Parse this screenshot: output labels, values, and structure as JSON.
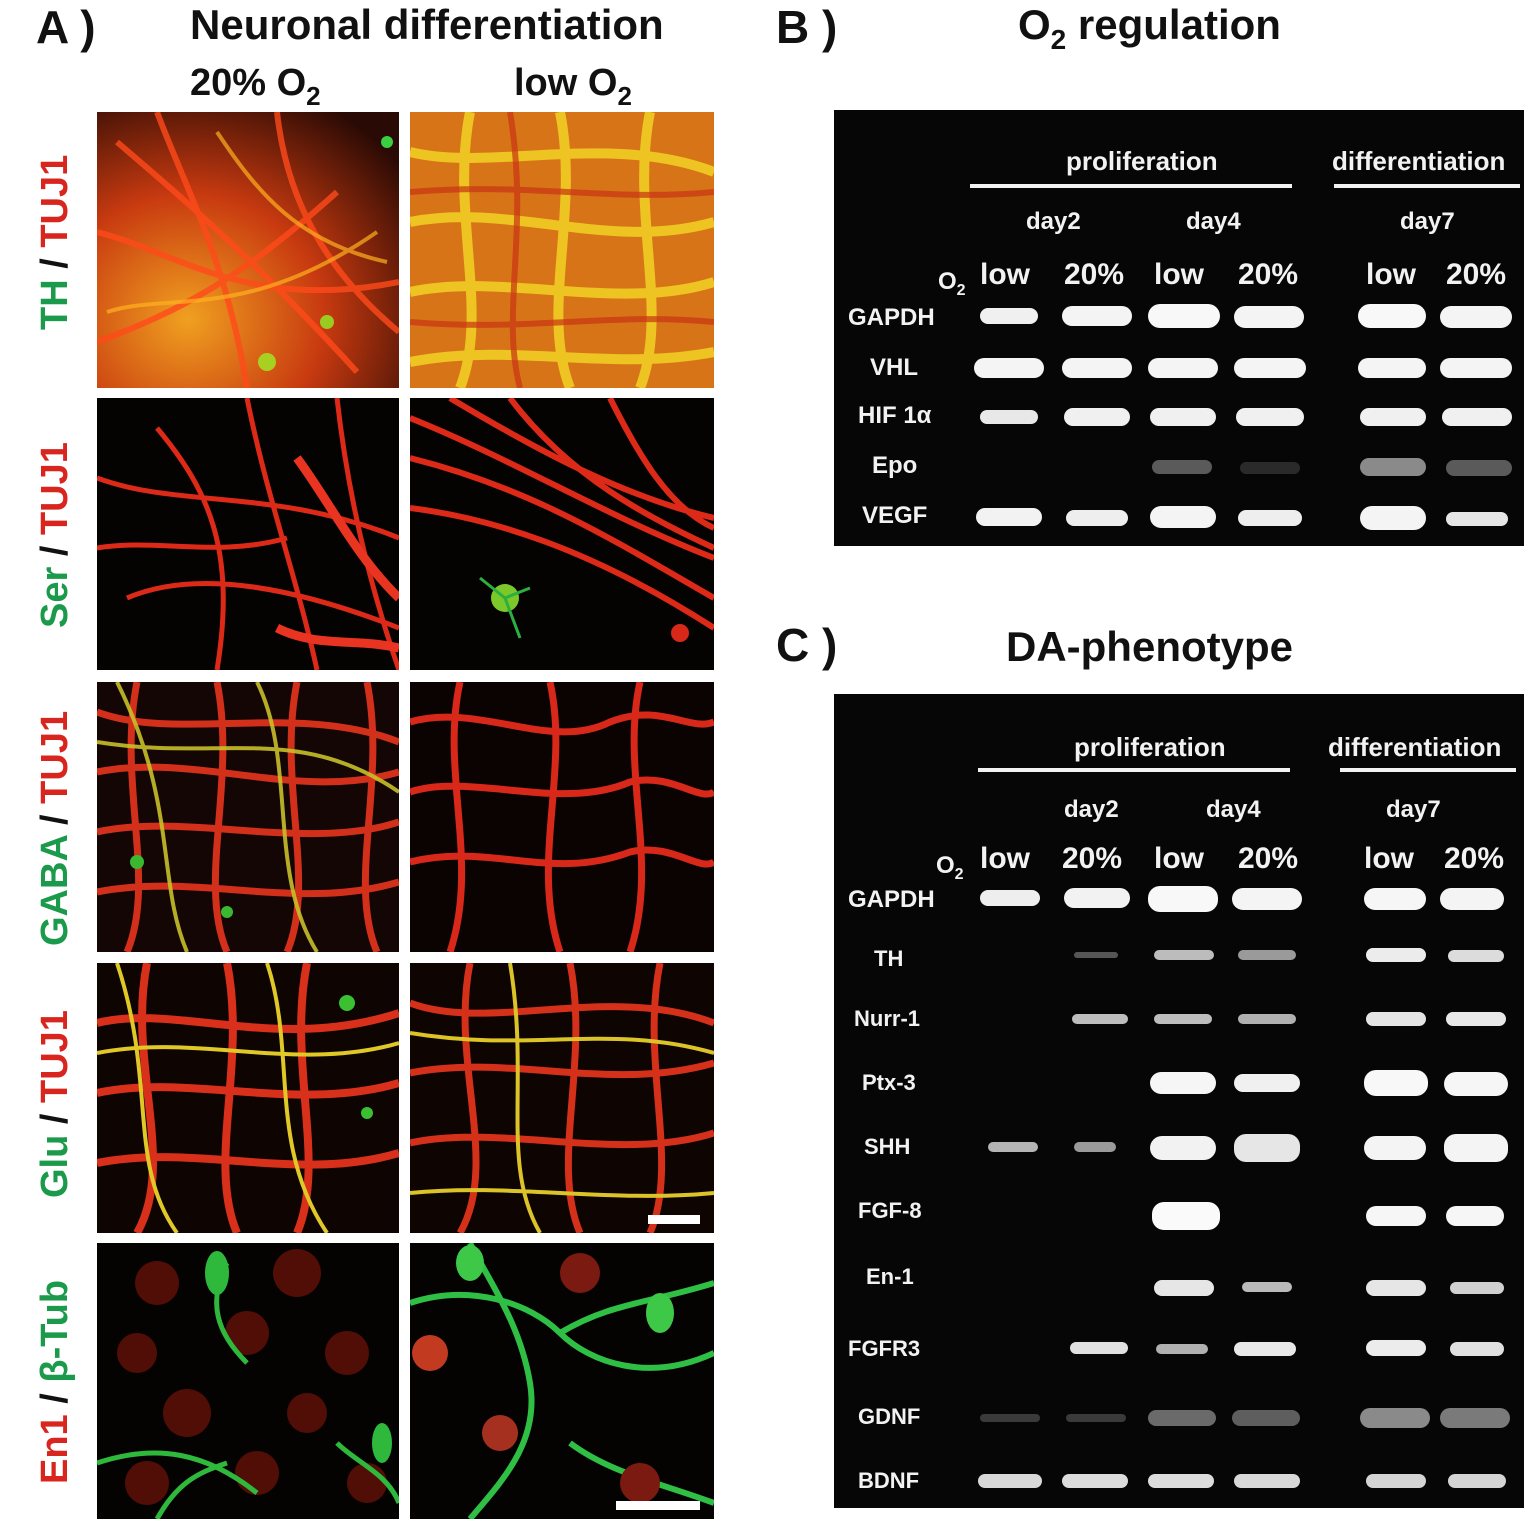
{
  "panel_a": {
    "letter": "A )",
    "title": "Neuronal differentiation",
    "col_left": "20% O",
    "col_left_sub": "2",
    "col_right": "low O",
    "col_right_sub": "2",
    "rows": [
      {
        "green": "TH",
        "slash": " / ",
        "red": "TUJ1",
        "green_first": true
      },
      {
        "green": "Ser",
        "slash": " / ",
        "red": "TUJ1",
        "green_first": true
      },
      {
        "green": "GABA",
        "slash": " / ",
        "red": "TUJ1",
        "green_first": true
      },
      {
        "green": "Glu",
        "slash": " / ",
        "red": "TUJ1",
        "green_first": true
      },
      {
        "red": "En1",
        "slash": " / ",
        "green": "β-Tub",
        "green_first": false
      }
    ]
  },
  "panel_b": {
    "letter": "B )",
    "title": "O",
    "title_sub": "2",
    "title_rest": " regulation",
    "group_prolif": "proliferation",
    "group_diff": "differentiation",
    "day2": "day2",
    "day4": "day4",
    "day7": "day7",
    "o2_label": "O",
    "o2_sub": "2",
    "lanes": [
      "low",
      "20%",
      "low",
      "20%",
      "low",
      "20%"
    ],
    "genes": [
      "GAPDH",
      "VHL",
      "HIF 1α",
      "Epo",
      "VEGF"
    ]
  },
  "panel_c": {
    "letter": "C )",
    "title": "DA-phenotype",
    "group_prolif": "proliferation",
    "group_diff": "differentiation",
    "day2": "day2",
    "day4": "day4",
    "day7": "day7",
    "o2_label": "O",
    "o2_sub": "2",
    "lanes": [
      "low",
      "20%",
      "low",
      "20%",
      "low",
      "20%"
    ],
    "genes": [
      "GAPDH",
      "TH",
      "Nurr-1",
      "Ptx-3",
      "SHH",
      "FGF-8",
      "En-1",
      "FGFR3",
      "GDNF",
      "BDNF"
    ]
  },
  "colors": {
    "marker_green": "#1a9a4a",
    "marker_red": "#d8261f",
    "gel_background": "#060606",
    "band": "#f4f4f4"
  }
}
